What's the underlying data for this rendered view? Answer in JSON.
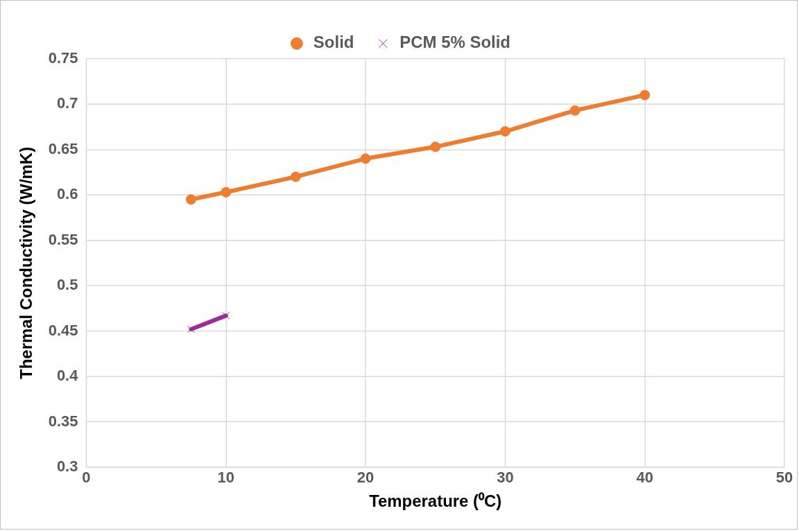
{
  "chart_data": {
    "type": "line",
    "xlabel": "Temperature (⁰C)",
    "ylabel": "Thermal Conductivity (W/mK)",
    "xlim": [
      0,
      50
    ],
    "xticks": [
      0,
      10,
      20,
      30,
      40,
      50
    ],
    "ylim": [
      0.3,
      0.75
    ],
    "yticks": [
      0.3,
      0.35,
      0.4,
      0.45,
      0.5,
      0.55,
      0.6,
      0.65,
      0.7,
      0.75
    ],
    "grid": true,
    "legend": "top",
    "line_style": "solid",
    "series": [
      {
        "name": "Solid",
        "color": "#ed7d31",
        "marker": "circle",
        "x": [
          7.5,
          10,
          15,
          20,
          25,
          30,
          35,
          40
        ],
        "values": [
          0.595,
          0.603,
          0.62,
          0.64,
          0.653,
          0.67,
          0.693,
          0.71
        ]
      },
      {
        "name": "PCM 5% Solid",
        "color": "#9e2a9b",
        "marker": "cross",
        "x": [
          7.5,
          10
        ],
        "values": [
          0.452,
          0.467
        ]
      }
    ]
  }
}
